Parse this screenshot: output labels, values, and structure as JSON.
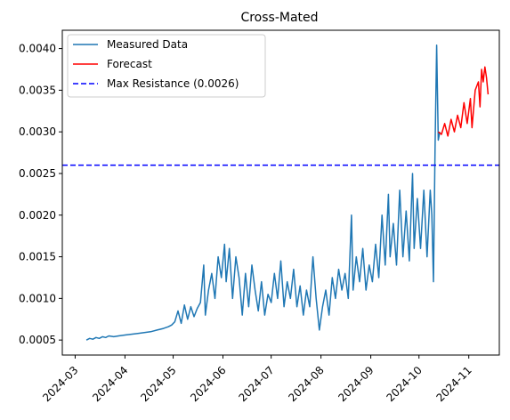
{
  "chart_data": {
    "type": "line",
    "title": "Cross-Mated",
    "xlabel": "",
    "ylabel": "",
    "xlim": [
      "2024-02-22",
      "2024-11-20"
    ],
    "ylim": [
      0.00032,
      0.00422
    ],
    "grid": false,
    "legend_position": "top-left",
    "x_ticks": [
      "2024-03",
      "2024-04",
      "2024-05",
      "2024-06",
      "2024-07",
      "2024-08",
      "2024-09",
      "2024-10",
      "2024-11"
    ],
    "y_ticks": [
      "0.0005",
      "0.0010",
      "0.0015",
      "0.0020",
      "0.0025",
      "0.0030",
      "0.0035",
      "0.0040"
    ],
    "series": [
      {
        "name": "Measured Data",
        "color": "#1f77b4",
        "style": "solid",
        "points": [
          [
            "2024-03-08",
            0.0005
          ],
          [
            "2024-03-10",
            0.00052
          ],
          [
            "2024-03-12",
            0.00051
          ],
          [
            "2024-03-14",
            0.00053
          ],
          [
            "2024-03-16",
            0.00052
          ],
          [
            "2024-03-18",
            0.00054
          ],
          [
            "2024-03-20",
            0.00053
          ],
          [
            "2024-03-22",
            0.00055
          ],
          [
            "2024-03-25",
            0.00054
          ],
          [
            "2024-03-28",
            0.00055
          ],
          [
            "2024-04-01",
            0.00056
          ],
          [
            "2024-04-05",
            0.00057
          ],
          [
            "2024-04-09",
            0.00058
          ],
          [
            "2024-04-13",
            0.00059
          ],
          [
            "2024-04-17",
            0.0006
          ],
          [
            "2024-04-21",
            0.00062
          ],
          [
            "2024-04-25",
            0.00064
          ],
          [
            "2024-04-28",
            0.00066
          ],
          [
            "2024-04-30",
            0.00068
          ],
          [
            "2024-05-02",
            0.00072
          ],
          [
            "2024-05-04",
            0.00085
          ],
          [
            "2024-05-06",
            0.0007
          ],
          [
            "2024-05-08",
            0.00092
          ],
          [
            "2024-05-10",
            0.00075
          ],
          [
            "2024-05-12",
            0.0009
          ],
          [
            "2024-05-14",
            0.00078
          ],
          [
            "2024-05-16",
            0.00088
          ],
          [
            "2024-05-18",
            0.00095
          ],
          [
            "2024-05-20",
            0.0014
          ],
          [
            "2024-05-21",
            0.0008
          ],
          [
            "2024-05-23",
            0.0011
          ],
          [
            "2024-05-25",
            0.0013
          ],
          [
            "2024-05-27",
            0.001
          ],
          [
            "2024-05-29",
            0.0015
          ],
          [
            "2024-05-31",
            0.00125
          ],
          [
            "2024-06-02",
            0.00165
          ],
          [
            "2024-06-03",
            0.0012
          ],
          [
            "2024-06-05",
            0.0016
          ],
          [
            "2024-06-07",
            0.001
          ],
          [
            "2024-06-09",
            0.0015
          ],
          [
            "2024-06-11",
            0.00125
          ],
          [
            "2024-06-13",
            0.0008
          ],
          [
            "2024-06-15",
            0.0013
          ],
          [
            "2024-06-17",
            0.0009
          ],
          [
            "2024-06-19",
            0.0014
          ],
          [
            "2024-06-21",
            0.0011
          ],
          [
            "2024-06-23",
            0.00085
          ],
          [
            "2024-06-25",
            0.0012
          ],
          [
            "2024-06-27",
            0.0008
          ],
          [
            "2024-06-29",
            0.00105
          ],
          [
            "2024-07-01",
            0.00095
          ],
          [
            "2024-07-03",
            0.0013
          ],
          [
            "2024-07-05",
            0.001
          ],
          [
            "2024-07-07",
            0.00145
          ],
          [
            "2024-07-09",
            0.0009
          ],
          [
            "2024-07-11",
            0.0012
          ],
          [
            "2024-07-13",
            0.001
          ],
          [
            "2024-07-15",
            0.00135
          ],
          [
            "2024-07-17",
            0.0009
          ],
          [
            "2024-07-19",
            0.00115
          ],
          [
            "2024-07-21",
            0.0008
          ],
          [
            "2024-07-23",
            0.0011
          ],
          [
            "2024-07-25",
            0.0009
          ],
          [
            "2024-07-27",
            0.0015
          ],
          [
            "2024-07-29",
            0.001
          ],
          [
            "2024-07-31",
            0.00062
          ],
          [
            "2024-08-02",
            0.0009
          ],
          [
            "2024-08-04",
            0.0011
          ],
          [
            "2024-08-06",
            0.0008
          ],
          [
            "2024-08-08",
            0.00125
          ],
          [
            "2024-08-10",
            0.001
          ],
          [
            "2024-08-12",
            0.00135
          ],
          [
            "2024-08-14",
            0.0011
          ],
          [
            "2024-08-16",
            0.0013
          ],
          [
            "2024-08-18",
            0.001
          ],
          [
            "2024-08-20",
            0.002
          ],
          [
            "2024-08-21",
            0.0011
          ],
          [
            "2024-08-23",
            0.0015
          ],
          [
            "2024-08-25",
            0.0012
          ],
          [
            "2024-08-27",
            0.0016
          ],
          [
            "2024-08-29",
            0.0011
          ],
          [
            "2024-08-31",
            0.0014
          ],
          [
            "2024-09-02",
            0.0012
          ],
          [
            "2024-09-04",
            0.00165
          ],
          [
            "2024-09-06",
            0.00125
          ],
          [
            "2024-09-08",
            0.002
          ],
          [
            "2024-09-10",
            0.0014
          ],
          [
            "2024-09-12",
            0.00225
          ],
          [
            "2024-09-13",
            0.0015
          ],
          [
            "2024-09-15",
            0.0019
          ],
          [
            "2024-09-17",
            0.0014
          ],
          [
            "2024-09-19",
            0.0023
          ],
          [
            "2024-09-21",
            0.0015
          ],
          [
            "2024-09-23",
            0.00205
          ],
          [
            "2024-09-25",
            0.00145
          ],
          [
            "2024-09-27",
            0.0025
          ],
          [
            "2024-09-28",
            0.0016
          ],
          [
            "2024-09-30",
            0.0022
          ],
          [
            "2024-10-02",
            0.0016
          ],
          [
            "2024-10-04",
            0.0023
          ],
          [
            "2024-10-06",
            0.0015
          ],
          [
            "2024-10-08",
            0.0023
          ],
          [
            "2024-10-09",
            0.002
          ],
          [
            "2024-10-10",
            0.0012
          ],
          [
            "2024-10-11",
            0.0028
          ],
          [
            "2024-10-12",
            0.00404
          ],
          [
            "2024-10-13",
            0.0029
          ],
          [
            "2024-10-14",
            0.003
          ]
        ]
      },
      {
        "name": "Forecast",
        "color": "#ff0000",
        "style": "solid",
        "points": [
          [
            "2024-10-13",
            0.003
          ],
          [
            "2024-10-15",
            0.00297
          ],
          [
            "2024-10-17",
            0.0031
          ],
          [
            "2024-10-19",
            0.00295
          ],
          [
            "2024-10-21",
            0.00315
          ],
          [
            "2024-10-23",
            0.003
          ],
          [
            "2024-10-25",
            0.0032
          ],
          [
            "2024-10-27",
            0.00305
          ],
          [
            "2024-10-29",
            0.00335
          ],
          [
            "2024-10-31",
            0.0031
          ],
          [
            "2024-11-02",
            0.0034
          ],
          [
            "2024-11-03",
            0.00305
          ],
          [
            "2024-11-05",
            0.0035
          ],
          [
            "2024-11-07",
            0.0036
          ],
          [
            "2024-11-08",
            0.0033
          ],
          [
            "2024-11-09",
            0.00375
          ],
          [
            "2024-11-10",
            0.0036
          ],
          [
            "2024-11-11",
            0.00378
          ],
          [
            "2024-11-12",
            0.00365
          ],
          [
            "2024-11-13",
            0.00345
          ]
        ]
      },
      {
        "name": "Max Resistance (0.0026)",
        "color": "#0000ff",
        "style": "dashed",
        "constant_y": 0.0026
      }
    ]
  }
}
